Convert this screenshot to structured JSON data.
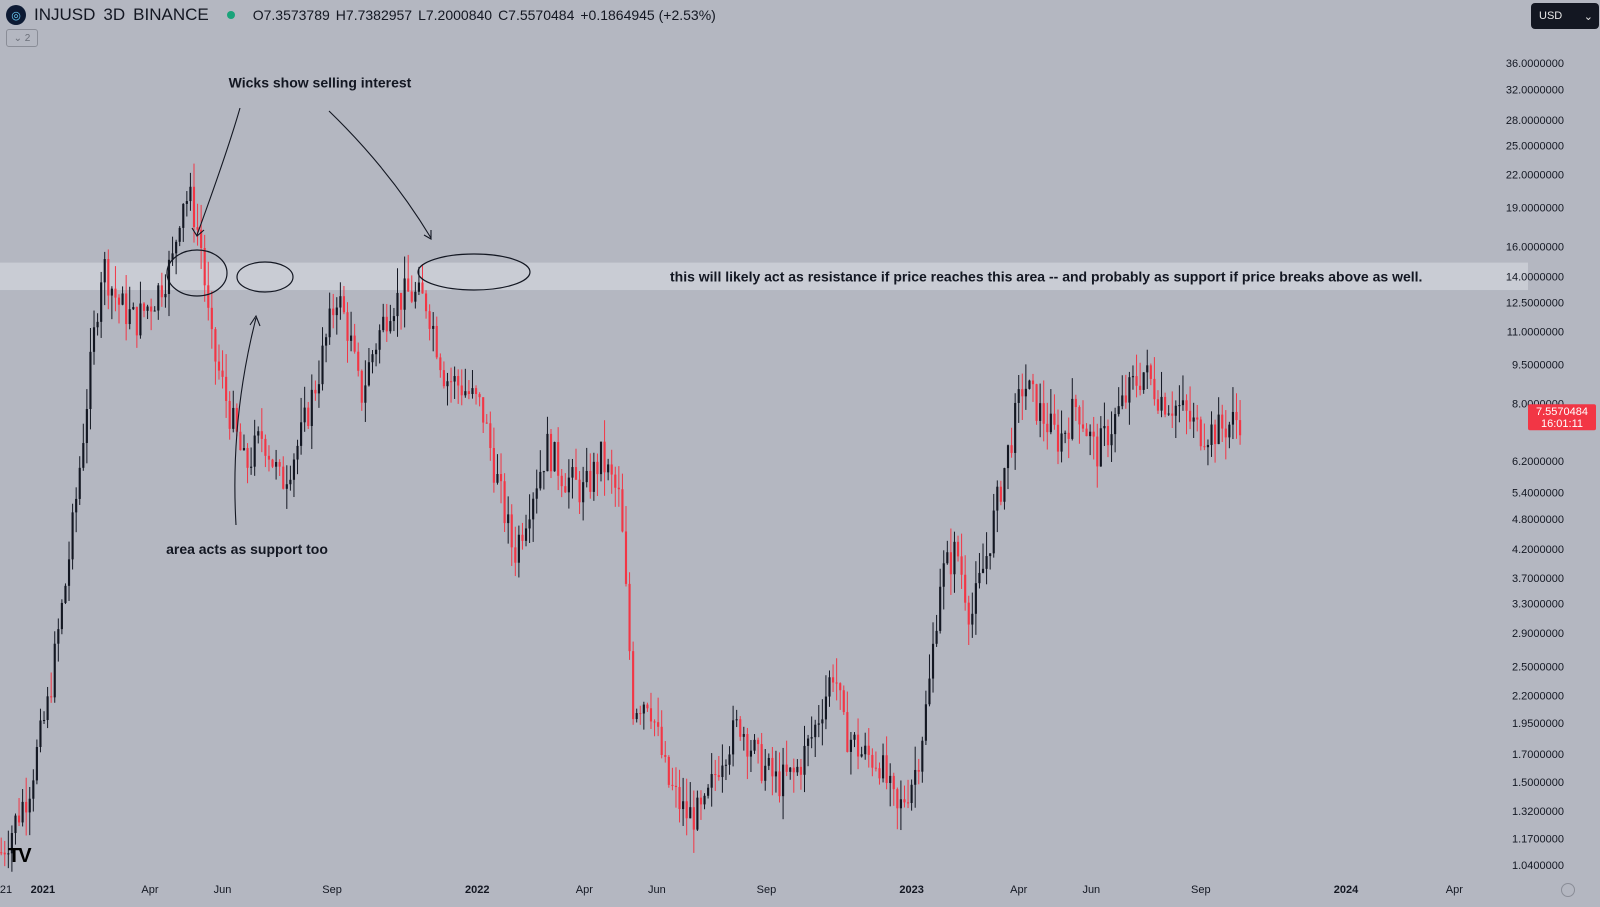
{
  "header": {
    "symbol": "INJUSD",
    "interval": "3D",
    "exchange": "BINANCE",
    "open": "O7.3573789",
    "high": "H7.7382957",
    "low": "L7.2000840",
    "close": "C7.5570484",
    "change": "+0.1864945 (+2.53%)",
    "collapse_label": "⌄ 2"
  },
  "currency": {
    "label": "USD"
  },
  "price_label": {
    "price": "7.5570484",
    "countdown": "16:01:11",
    "color": "#f23645"
  },
  "colors": {
    "up": "#131722",
    "down": "#f23645",
    "background": "#b4b7c1",
    "zone": "#c9ccd4"
  },
  "icons": {
    "logo": "tradingview-logo",
    "dropdown": "chevron-down-icon",
    "settings": "gear-icon"
  },
  "chart_data": {
    "type": "candlestick",
    "scale": "log",
    "y_ticks": [
      "36.0000000",
      "32.0000000",
      "28.0000000",
      "25.0000000",
      "22.0000000",
      "19.0000000",
      "16.0000000",
      "14.0000000",
      "12.5000000",
      "11.0000000",
      "9.5000000",
      "8.0000000",
      "6.2000000",
      "5.4000000",
      "4.8000000",
      "4.2000000",
      "3.7000000",
      "3.3000000",
      "2.9000000",
      "2.5000000",
      "2.2000000",
      "1.9500000",
      "1.7000000",
      "1.5000000",
      "1.3200000",
      "1.1700000",
      "1.0400000"
    ],
    "x_ticks": [
      {
        "label": "21",
        "date": "2020-12-01"
      },
      {
        "label": "2021",
        "date": "2021-01-01",
        "bold": true
      },
      {
        "label": "Apr",
        "date": "2021-04-01"
      },
      {
        "label": "Jun",
        "date": "2021-06-01"
      },
      {
        "label": "Sep",
        "date": "2021-09-01"
      },
      {
        "label": "2022",
        "date": "2022-01-01",
        "bold": true
      },
      {
        "label": "Apr",
        "date": "2022-04-01"
      },
      {
        "label": "Jun",
        "date": "2022-06-01"
      },
      {
        "label": "Sep",
        "date": "2022-09-01"
      },
      {
        "label": "2023",
        "date": "2023-01-01",
        "bold": true
      },
      {
        "label": "Apr",
        "date": "2023-04-01"
      },
      {
        "label": "Jun",
        "date": "2023-06-01"
      },
      {
        "label": "Sep",
        "date": "2023-09-01"
      },
      {
        "label": "2024",
        "date": "2024-01-01",
        "bold": true
      },
      {
        "label": "Apr",
        "date": "2024-04-01"
      }
    ],
    "x_range": [
      "2020-11-26",
      "2024-05-01"
    ],
    "price_path": [
      {
        "date": "2020-11-27",
        "price": 1.1
      },
      {
        "date": "2020-12-05",
        "price": 1.2
      },
      {
        "date": "2020-12-20",
        "price": 1.45
      },
      {
        "date": "2021-01-05",
        "price": 2.1
      },
      {
        "date": "2021-01-20",
        "price": 3.6
      },
      {
        "date": "2021-01-28",
        "price": 5.0
      },
      {
        "date": "2021-02-08",
        "price": 8.5
      },
      {
        "date": "2021-02-20",
        "price": 15.0
      },
      {
        "date": "2021-03-05",
        "price": 12.5
      },
      {
        "date": "2021-03-20",
        "price": 11.5
      },
      {
        "date": "2021-04-05",
        "price": 12.8
      },
      {
        "date": "2021-04-20",
        "price": 15.0
      },
      {
        "date": "2021-04-28",
        "price": 20.0
      },
      {
        "date": "2021-05-06",
        "price": 19.5
      },
      {
        "date": "2021-05-14",
        "price": 16.0
      },
      {
        "date": "2021-05-22",
        "price": 10.5
      },
      {
        "date": "2021-06-05",
        "price": 8.0
      },
      {
        "date": "2021-06-20",
        "price": 6.0
      },
      {
        "date": "2021-07-05",
        "price": 7.0
      },
      {
        "date": "2021-07-20",
        "price": 5.6
      },
      {
        "date": "2021-08-05",
        "price": 6.8
      },
      {
        "date": "2021-08-20",
        "price": 9.0
      },
      {
        "date": "2021-09-05",
        "price": 13.0
      },
      {
        "date": "2021-09-15",
        "price": 11.0
      },
      {
        "date": "2021-09-25",
        "price": 8.2
      },
      {
        "date": "2021-10-05",
        "price": 10.0
      },
      {
        "date": "2021-10-20",
        "price": 12.5
      },
      {
        "date": "2021-11-05",
        "price": 13.0
      },
      {
        "date": "2021-11-20",
        "price": 12.5
      },
      {
        "date": "2021-12-05",
        "price": 9.0
      },
      {
        "date": "2021-12-20",
        "price": 8.6
      },
      {
        "date": "2022-01-05",
        "price": 7.8
      },
      {
        "date": "2022-01-20",
        "price": 5.4
      },
      {
        "date": "2022-02-01",
        "price": 4.1
      },
      {
        "date": "2022-02-15",
        "price": 5.3
      },
      {
        "date": "2022-03-01",
        "price": 6.6
      },
      {
        "date": "2022-03-15",
        "price": 5.8
      },
      {
        "date": "2022-04-01",
        "price": 5.4
      },
      {
        "date": "2022-04-15",
        "price": 6.3
      },
      {
        "date": "2022-05-01",
        "price": 5.2
      },
      {
        "date": "2022-05-12",
        "price": 2.1
      },
      {
        "date": "2022-05-25",
        "price": 2.2
      },
      {
        "date": "2022-06-10",
        "price": 1.5
      },
      {
        "date": "2022-06-25",
        "price": 1.3
      },
      {
        "date": "2022-07-10",
        "price": 1.3
      },
      {
        "date": "2022-07-25",
        "price": 1.7
      },
      {
        "date": "2022-08-10",
        "price": 1.95
      },
      {
        "date": "2022-08-25",
        "price": 1.65
      },
      {
        "date": "2022-09-10",
        "price": 1.5
      },
      {
        "date": "2022-09-25",
        "price": 1.55
      },
      {
        "date": "2022-10-10",
        "price": 1.85
      },
      {
        "date": "2022-10-28",
        "price": 2.5
      },
      {
        "date": "2022-11-05",
        "price": 1.9
      },
      {
        "date": "2022-11-20",
        "price": 1.7
      },
      {
        "date": "2022-12-05",
        "price": 1.65
      },
      {
        "date": "2022-12-20",
        "price": 1.3
      },
      {
        "date": "2023-01-05",
        "price": 1.6
      },
      {
        "date": "2023-01-15",
        "price": 2.2
      },
      {
        "date": "2023-01-25",
        "price": 3.7
      },
      {
        "date": "2023-02-08",
        "price": 4.2
      },
      {
        "date": "2023-02-20",
        "price": 3.1
      },
      {
        "date": "2023-03-05",
        "price": 4.1
      },
      {
        "date": "2023-03-20",
        "price": 6.0
      },
      {
        "date": "2023-04-05",
        "price": 8.8
      },
      {
        "date": "2023-04-20",
        "price": 7.6
      },
      {
        "date": "2023-05-05",
        "price": 6.8
      },
      {
        "date": "2023-05-20",
        "price": 8.0
      },
      {
        "date": "2023-06-05",
        "price": 6.4
      },
      {
        "date": "2023-06-20",
        "price": 7.4
      },
      {
        "date": "2023-07-05",
        "price": 8.6
      },
      {
        "date": "2023-07-15",
        "price": 9.2
      },
      {
        "date": "2023-07-30",
        "price": 8.2
      },
      {
        "date": "2023-08-15",
        "price": 7.8
      },
      {
        "date": "2023-08-30",
        "price": 7.1
      },
      {
        "date": "2023-09-15",
        "price": 7.1
      },
      {
        "date": "2023-09-25",
        "price": 7.3
      },
      {
        "date": "2023-10-05",
        "price": 7.557
      }
    ],
    "resistance_zone": {
      "low": 13.2,
      "high": 14.9
    },
    "annotations": [
      {
        "text": "Wicks show selling interest",
        "date": "2021-04-20",
        "price": 33.0
      },
      {
        "text": "area acts as support too",
        "date": "2021-04-20",
        "price": 4.2
      },
      {
        "text": "this will likely act as resistance if price reaches this area -- and probably as support if price breaks above as well.",
        "date": "2023-02-15",
        "price": 14.0
      }
    ]
  }
}
